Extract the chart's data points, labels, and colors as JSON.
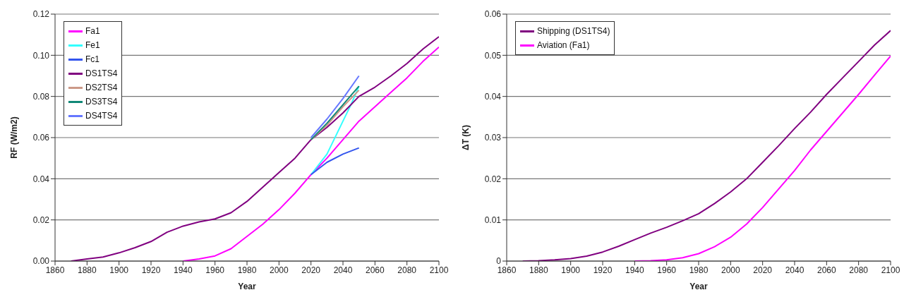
{
  "chart_data": [
    {
      "type": "line",
      "xlabel": "Year",
      "ylabel": "RF (W/m2)",
      "xlim": [
        1860,
        2100
      ],
      "xticks": [
        1860,
        1880,
        1900,
        1920,
        1940,
        1960,
        1980,
        2000,
        2020,
        2040,
        2060,
        2080,
        2100
      ],
      "ylim": [
        0,
        0.12
      ],
      "yticks": [
        {
          "value": 0,
          "label": "0.00"
        },
        {
          "value": 0.02,
          "label": "0.02"
        },
        {
          "value": 0.04,
          "label": "0.04"
        },
        {
          "value": 0.06,
          "label": "0.06"
        },
        {
          "value": 0.08,
          "label": "0.08"
        },
        {
          "value": 0.1,
          "label": "0.10"
        },
        {
          "value": 0.12,
          "label": "0.12"
        }
      ],
      "grid": "y",
      "legend": "top left",
      "marker": "none",
      "line_style": "solid",
      "series": [
        {
          "name": "Fa1",
          "color": "#ff00ff",
          "x": [
            1940,
            1950,
            1960,
            1970,
            1980,
            1990,
            2000,
            2010,
            2020,
            2030,
            2040,
            2050,
            2060,
            2070,
            2080,
            2090,
            2100
          ],
          "values": [
            0,
            0.001,
            0.0025,
            0.006,
            0.012,
            0.018,
            0.025,
            0.033,
            0.042,
            0.05,
            0.059,
            0.068,
            0.075,
            0.082,
            0.089,
            0.097,
            0.104
          ]
        },
        {
          "name": "Fe1",
          "color": "#33ffff",
          "x": [
            2020,
            2030,
            2040,
            2045,
            2050
          ],
          "values": [
            0.042,
            0.052,
            0.068,
            0.076,
            0.085
          ]
        },
        {
          "name": "Fc1",
          "color": "#3355ee",
          "x": [
            2020,
            2030,
            2040,
            2050
          ],
          "values": [
            0.042,
            0.048,
            0.052,
            0.055
          ]
        },
        {
          "name": "DS1TS4",
          "color": "#800080",
          "x": [
            1870,
            1880,
            1890,
            1900,
            1910,
            1920,
            1930,
            1940,
            1950,
            1960,
            1970,
            1980,
            1990,
            2000,
            2010,
            2020,
            2030,
            2040,
            2050,
            2060,
            2070,
            2080,
            2090,
            2100
          ],
          "values": [
            0,
            0.001,
            0.002,
            0.004,
            0.0065,
            0.0095,
            0.014,
            0.017,
            0.019,
            0.0205,
            0.0235,
            0.029,
            0.036,
            0.043,
            0.05,
            0.059,
            0.065,
            0.072,
            0.08,
            0.0845,
            0.09,
            0.096,
            0.103,
            0.109
          ]
        },
        {
          "name": "DS2TS4",
          "color": "#cc9988",
          "x": [
            2020,
            2030,
            2040,
            2050
          ],
          "values": [
            0.059,
            0.066,
            0.075,
            0.083
          ]
        },
        {
          "name": "DS3TS4",
          "color": "#118877",
          "x": [
            2020,
            2030,
            2040,
            2050
          ],
          "values": [
            0.059,
            0.067,
            0.076,
            0.085
          ]
        },
        {
          "name": "DS4TS4",
          "color": "#6677ff",
          "x": [
            2020,
            2030,
            2040,
            2050
          ],
          "values": [
            0.06,
            0.069,
            0.079,
            0.09
          ]
        }
      ]
    },
    {
      "type": "line",
      "xlabel": "Year",
      "ylabel": "ΔT (K)",
      "xlim": [
        1860,
        2100
      ],
      "xticks": [
        1860,
        1880,
        1900,
        1920,
        1940,
        1960,
        1980,
        2000,
        2020,
        2040,
        2060,
        2080,
        2100
      ],
      "ylim": [
        0,
        0.06
      ],
      "yticks": [
        0,
        0.01,
        0.02,
        0.03,
        0.04,
        0.05,
        0.06
      ],
      "grid": "y",
      "legend": "top left",
      "marker": "none",
      "line_style": "solid",
      "series": [
        {
          "name": "Shipping (DS1TS4)",
          "color": "#800080",
          "x": [
            1870,
            1880,
            1890,
            1900,
            1910,
            1920,
            1930,
            1940,
            1950,
            1960,
            1970,
            1980,
            1990,
            2000,
            2010,
            2020,
            2030,
            2040,
            2050,
            2060,
            2070,
            2080,
            2090,
            2100
          ],
          "values": [
            0,
            0.0001,
            0.0003,
            0.0006,
            0.0012,
            0.0022,
            0.0036,
            0.0052,
            0.0068,
            0.0082,
            0.0098,
            0.0115,
            0.014,
            0.0168,
            0.02,
            0.024,
            0.028,
            0.0322,
            0.0362,
            0.0405,
            0.0445,
            0.0485,
            0.0525,
            0.056
          ]
        },
        {
          "name": "Aviation (Fa1)",
          "color": "#ff00ff",
          "x": [
            1940,
            1950,
            1960,
            1970,
            1980,
            1990,
            2000,
            2010,
            2020,
            2030,
            2040,
            2050,
            2060,
            2070,
            2080,
            2090,
            2100
          ],
          "values": [
            0,
            0.0001,
            0.0003,
            0.0008,
            0.0018,
            0.0035,
            0.0058,
            0.009,
            0.013,
            0.0175,
            0.022,
            0.027,
            0.0315,
            0.036,
            0.0405,
            0.0452,
            0.0498
          ]
        }
      ]
    }
  ]
}
